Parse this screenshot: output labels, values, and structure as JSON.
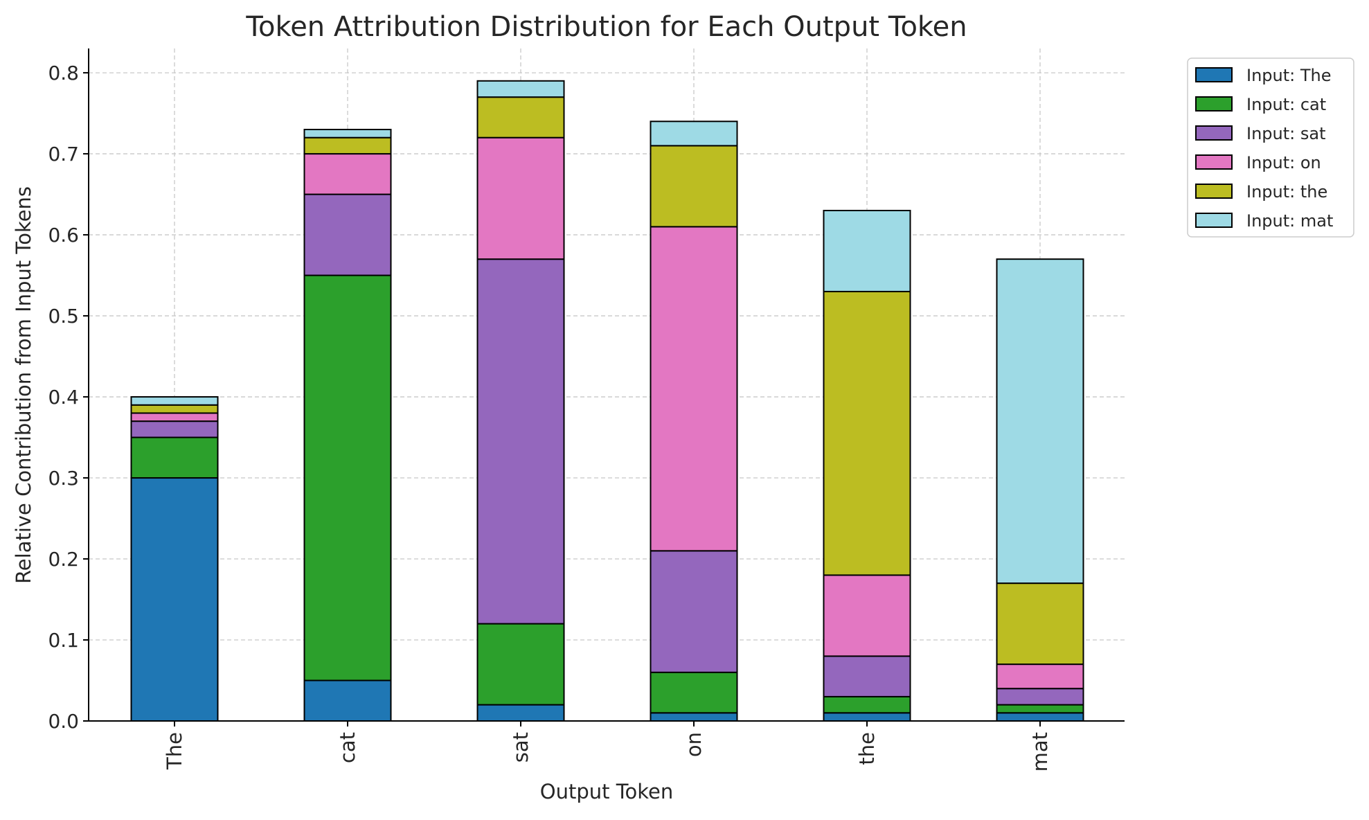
{
  "chart_data": {
    "type": "bar",
    "stacked": true,
    "title": "Token Attribution Distribution for Each Output Token",
    "xlabel": "Output Token",
    "ylabel": "Relative Contribution from Input Tokens",
    "categories": [
      "The",
      "cat",
      "sat",
      "on",
      "the",
      "mat"
    ],
    "ylim": [
      0,
      0.83
    ],
    "yticks": [
      0.0,
      0.1,
      0.2,
      0.3,
      0.4,
      0.5,
      0.6,
      0.7,
      0.8
    ],
    "ytick_labels": [
      "0.0",
      "0.1",
      "0.2",
      "0.3",
      "0.4",
      "0.5",
      "0.6",
      "0.7",
      "0.8"
    ],
    "grid": true,
    "legend_position": "outside-top-right",
    "series": [
      {
        "name": "Input: The",
        "color": "#1f77b4",
        "values": [
          0.3,
          0.05,
          0.02,
          0.01,
          0.01,
          0.01
        ]
      },
      {
        "name": "Input: cat",
        "color": "#2ca02c",
        "values": [
          0.05,
          0.5,
          0.1,
          0.05,
          0.02,
          0.01
        ]
      },
      {
        "name": "Input: sat",
        "color": "#9467bd",
        "values": [
          0.02,
          0.1,
          0.45,
          0.15,
          0.05,
          0.02
        ]
      },
      {
        "name": "Input: on",
        "color": "#e377c2",
        "values": [
          0.01,
          0.05,
          0.15,
          0.4,
          0.1,
          0.03
        ]
      },
      {
        "name": "Input: the",
        "color": "#bcbd22",
        "values": [
          0.01,
          0.02,
          0.05,
          0.1,
          0.35,
          0.1
        ]
      },
      {
        "name": "Input: mat",
        "color": "#9edae5",
        "values": [
          0.01,
          0.01,
          0.02,
          0.03,
          0.1,
          0.4
        ]
      }
    ]
  }
}
